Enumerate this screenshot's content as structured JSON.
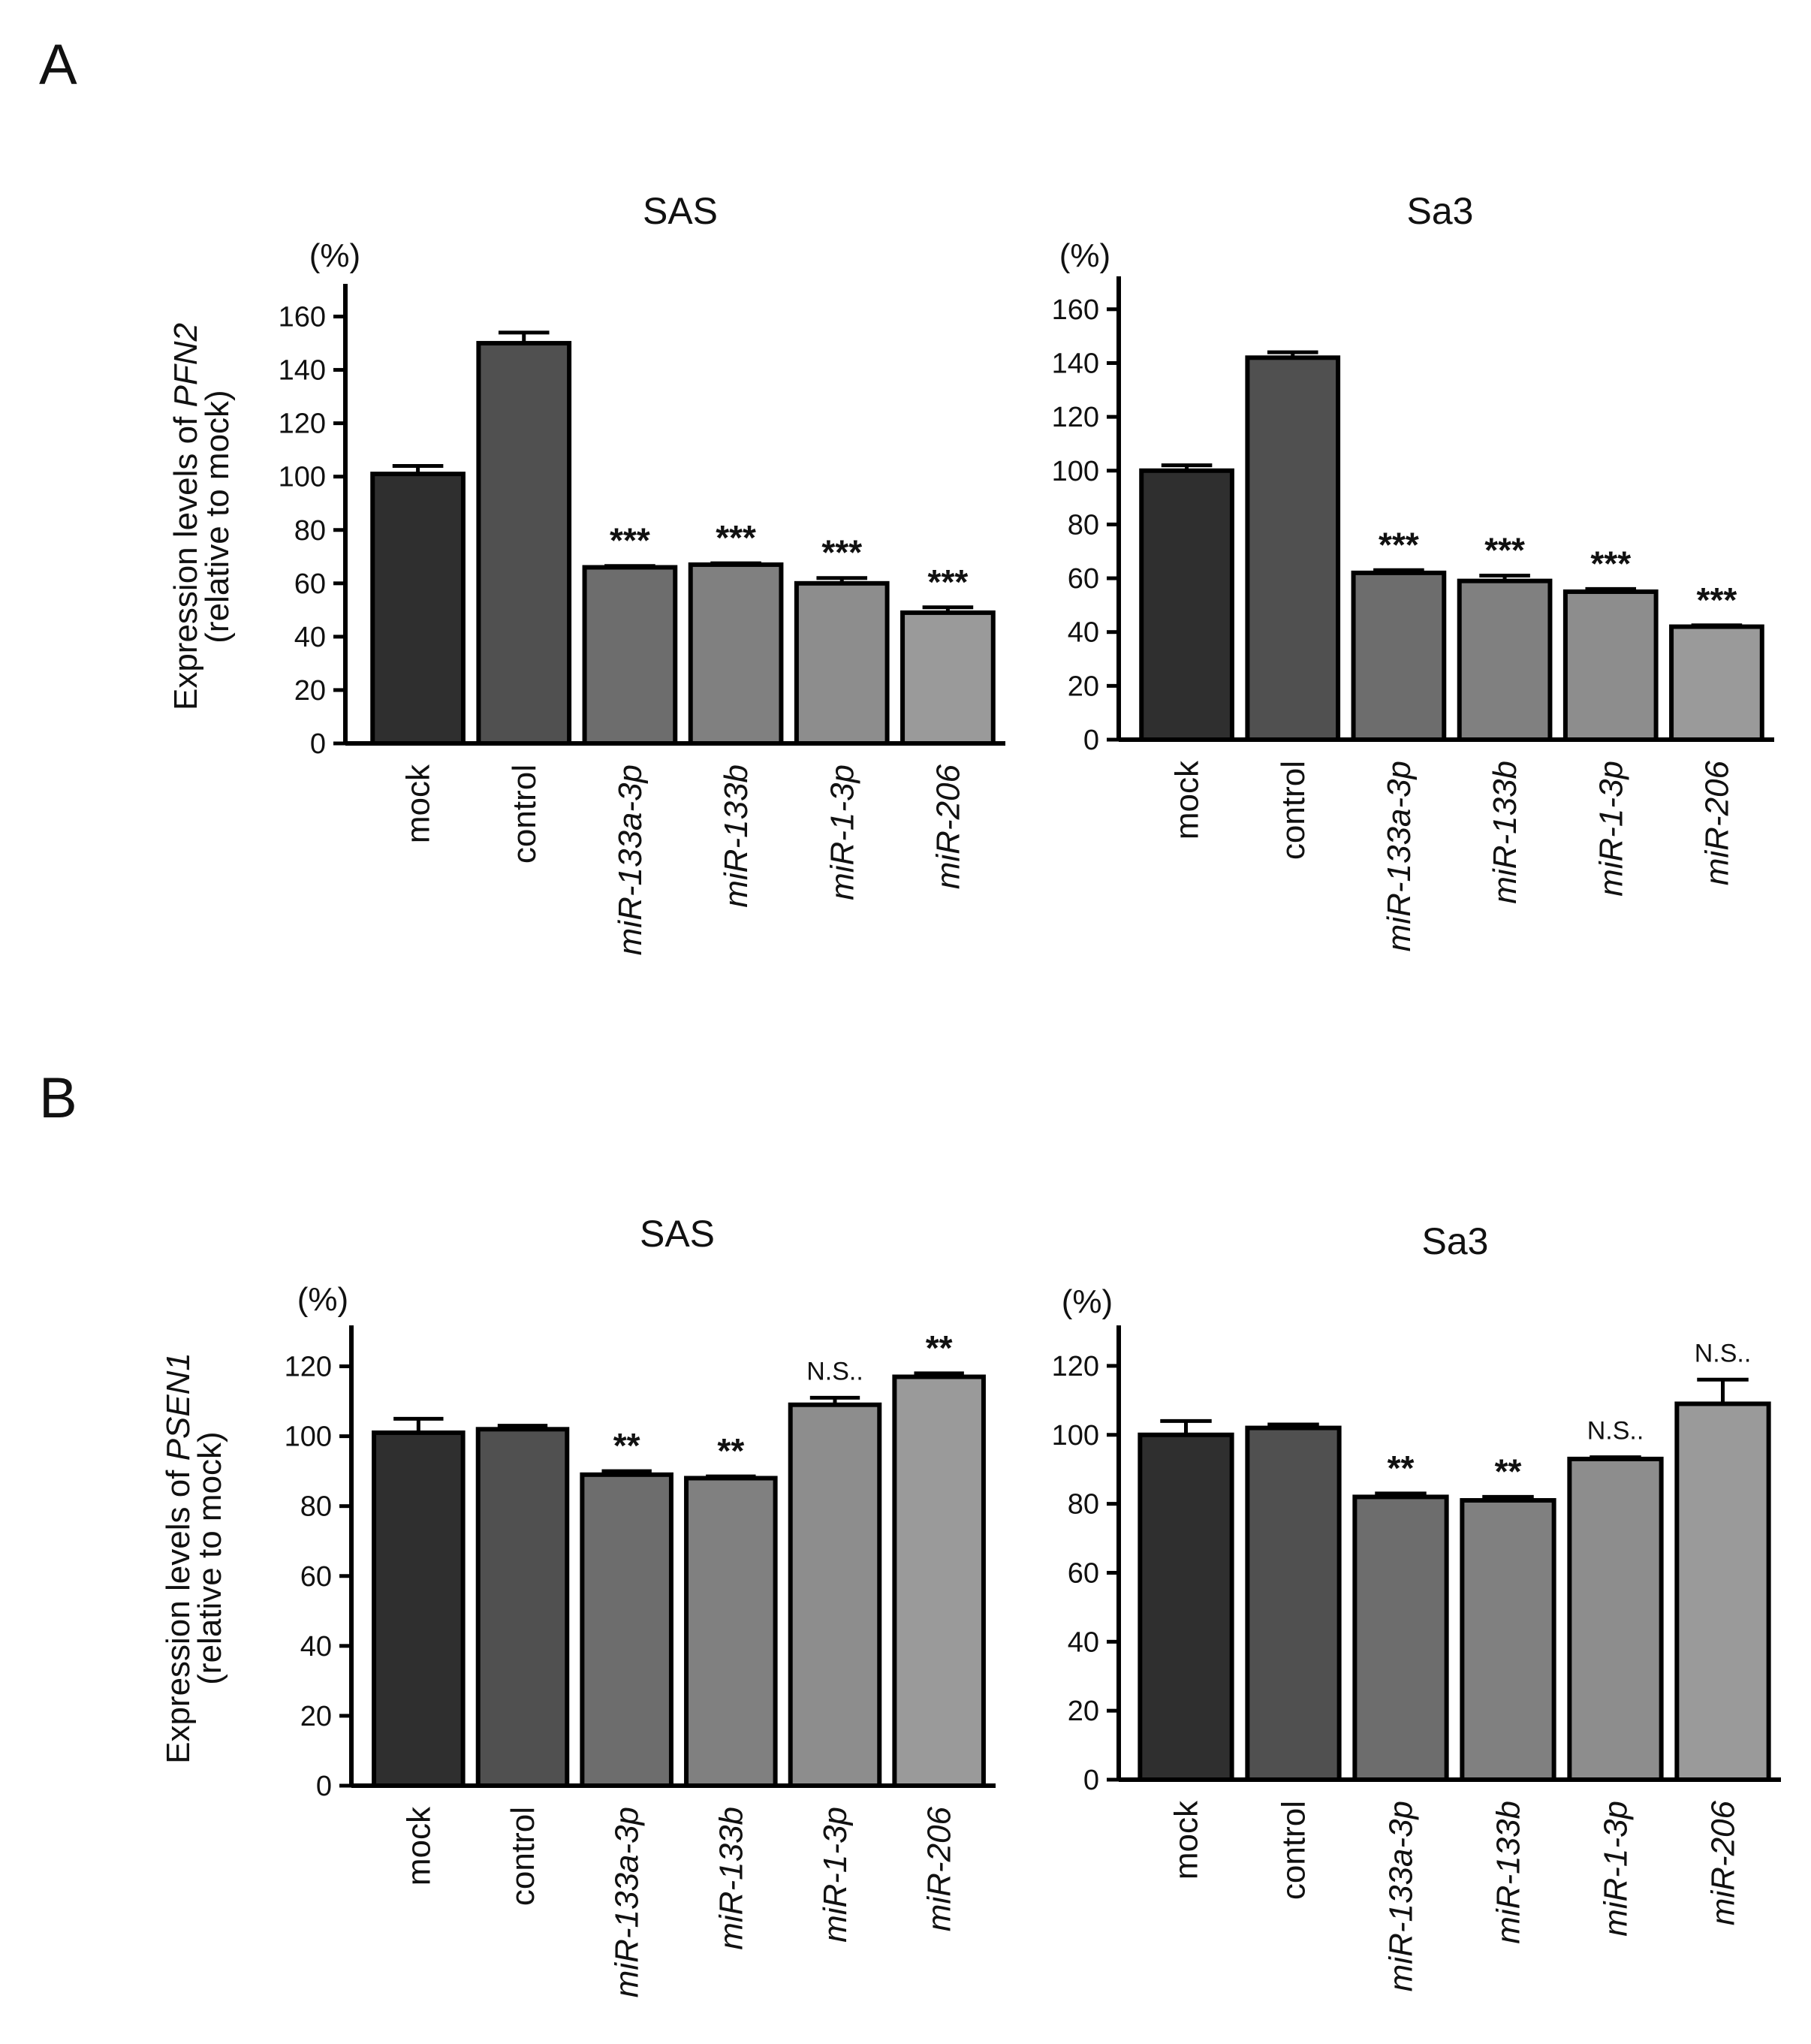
{
  "figure": {
    "panels": [
      {
        "label": "A"
      },
      {
        "label": "B"
      }
    ]
  },
  "chart_data": [
    {
      "type": "bar",
      "panel": "A",
      "title": "SAS",
      "unit_label": "(%)",
      "ylabel_line1_prefix": "Expression levels of ",
      "ylabel_line1_gene": "PFN2",
      "ylabel_line2": "(relative to mock)",
      "categories": [
        "mock",
        "control",
        "miR-133a-3p",
        "miR-133b",
        "miR-1-3p",
        "miR-206"
      ],
      "italic_categories": [
        false,
        false,
        true,
        true,
        true,
        true
      ],
      "values": [
        101,
        150,
        66,
        67,
        60,
        49
      ],
      "errors": [
        3,
        4,
        0.5,
        0.5,
        2,
        2
      ],
      "significance": [
        "",
        "",
        "***",
        "***",
        "***",
        "***"
      ],
      "ylim": [
        0,
        170
      ],
      "yticks": [
        0,
        20,
        40,
        60,
        80,
        100,
        120,
        140,
        160
      ],
      "bar_colors": [
        "#2f2f2f",
        "#505050",
        "#6d6d6d",
        "#808080",
        "#8d8d8d",
        "#9a9a9a"
      ],
      "grid": false
    },
    {
      "type": "bar",
      "panel": "A",
      "title": "Sa3",
      "unit_label": "(%)",
      "ylabel_line1_prefix": "",
      "ylabel_line1_gene": "",
      "ylabel_line2": "",
      "categories": [
        "mock",
        "control",
        "miR-133a-3p",
        "miR-133b",
        "miR-1-3p",
        "miR-206"
      ],
      "italic_categories": [
        false,
        false,
        true,
        true,
        true,
        true
      ],
      "values": [
        100,
        142,
        62,
        59,
        55,
        42
      ],
      "errors": [
        2,
        2,
        1,
        2,
        1,
        0.5
      ],
      "significance": [
        "",
        "",
        "***",
        "***",
        "***",
        "***"
      ],
      "ylim": [
        0,
        170
      ],
      "yticks": [
        0,
        20,
        40,
        60,
        80,
        100,
        120,
        140,
        160
      ],
      "bar_colors": [
        "#2f2f2f",
        "#505050",
        "#6d6d6d",
        "#808080",
        "#8d8d8d",
        "#9a9a9a"
      ],
      "grid": false
    },
    {
      "type": "bar",
      "panel": "B",
      "title": "SAS",
      "unit_label": "(%)",
      "ylabel_line1_prefix": "Expression levels of ",
      "ylabel_line1_gene": "PSEN1",
      "ylabel_line2": "(relative to mock)",
      "categories": [
        "mock",
        "control",
        "miR-133a-3p",
        "miR-133b",
        "miR-1-3p",
        "miR-206"
      ],
      "italic_categories": [
        false,
        false,
        true,
        true,
        true,
        true
      ],
      "values": [
        101,
        102,
        89,
        88,
        109,
        117
      ],
      "errors": [
        4,
        1,
        1,
        0.5,
        2,
        1
      ],
      "significance": [
        "",
        "",
        "**",
        "**",
        "N.S..",
        "**"
      ],
      "ylim": [
        0,
        130
      ],
      "yticks": [
        0,
        20,
        40,
        60,
        80,
        100,
        120
      ],
      "bar_colors": [
        "#2f2f2f",
        "#505050",
        "#6d6d6d",
        "#808080",
        "#8d8d8d",
        "#9a9a9a"
      ],
      "grid": false
    },
    {
      "type": "bar",
      "panel": "B",
      "title": "Sa3",
      "unit_label": "(%)",
      "ylabel_line1_prefix": "",
      "ylabel_line1_gene": "",
      "ylabel_line2": "",
      "categories": [
        "mock",
        "control",
        "miR-133a-3p",
        "miR-133b",
        "miR-1-3p",
        "miR-206"
      ],
      "italic_categories": [
        false,
        false,
        true,
        true,
        true,
        true
      ],
      "values": [
        100,
        102,
        82,
        81,
        93,
        109
      ],
      "errors": [
        4,
        1,
        1,
        1,
        0.5,
        7
      ],
      "significance": [
        "",
        "",
        "**",
        "**",
        "N.S..",
        "N.S.."
      ],
      "ylim": [
        0,
        130
      ],
      "yticks": [
        0,
        20,
        40,
        60,
        80,
        100,
        120
      ],
      "bar_colors": [
        "#2f2f2f",
        "#505050",
        "#6d6d6d",
        "#808080",
        "#8d8d8d",
        "#9a9a9a"
      ],
      "grid": false
    }
  ]
}
